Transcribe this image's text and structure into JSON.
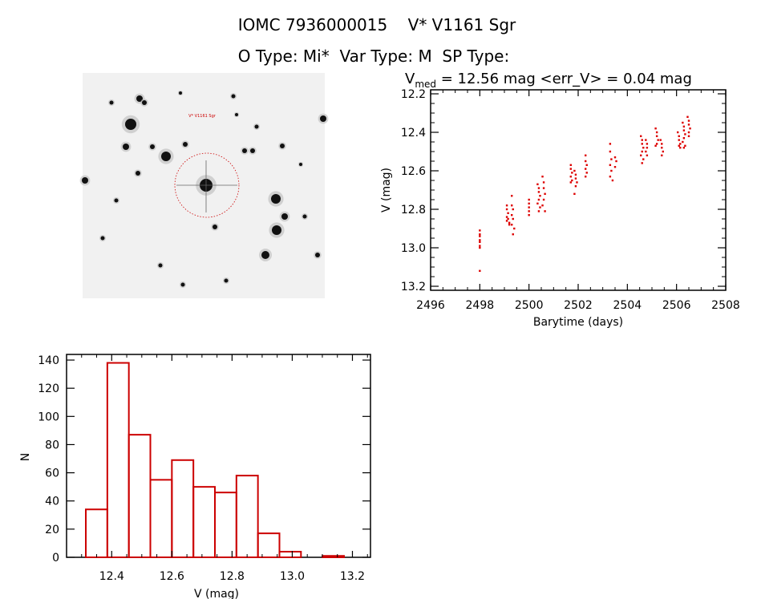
{
  "header": {
    "title": "IOMC 7936000015    V* V1161 Sgr",
    "subtitle": "O Type: Mi*  Var Type: M  SP Type:"
  },
  "image_panel": {
    "target_label": "V* V1161 Sgr",
    "target_marker_color": "#cc0000"
  },
  "chart_data": [
    {
      "type": "scatter",
      "title_main": "V",
      "title_sub": "med",
      "title_rest": " = 12.56 mag <err_V> = 0.04 mag",
      "xlabel": "Barytime (days)",
      "ylabel": "V (mag)",
      "xlim": [
        2496,
        2508
      ],
      "ylim": [
        13.2,
        12.2
      ],
      "y_inverted": true,
      "xticks": [
        "2496",
        "2498",
        "2500",
        "2502",
        "2504",
        "2506",
        "2508"
      ],
      "yticks": [
        "12.2",
        "12.4",
        "12.6",
        "12.8",
        "13.0",
        "13.2"
      ],
      "color": "#dd0000",
      "x": [
        2498.0,
        2498.0,
        2498.0,
        2498.0,
        2498.0,
        2498.0,
        2498.0,
        2498.0,
        2499.1,
        2499.1,
        2499.15,
        2499.1,
        2499.15,
        2499.1,
        2499.2,
        2499.2,
        2499.3,
        2499.3,
        2499.35,
        2499.3,
        2499.35,
        2499.3,
        2499.4,
        2499.35,
        2500.0,
        2500.0,
        2500.0,
        2500.0,
        2500.0,
        2500.35,
        2500.4,
        2500.4,
        2500.45,
        2500.4,
        2500.35,
        2500.45,
        2500.4,
        2500.55,
        2500.6,
        2500.6,
        2500.65,
        2500.6,
        2500.55,
        2500.65,
        2501.7,
        2501.7,
        2501.75,
        2501.7,
        2501.75,
        2501.7,
        2501.85,
        2501.9,
        2501.9,
        2501.95,
        2501.9,
        2501.85,
        2502.3,
        2502.3,
        2502.35,
        2502.3,
        2502.35,
        2502.3,
        2503.3,
        2503.3,
        2503.35,
        2503.3,
        2503.35,
        2503.3,
        2503.4,
        2503.5,
        2503.55,
        2503.5,
        2504.55,
        2504.6,
        2504.6,
        2504.65,
        2504.6,
        2504.55,
        2504.65,
        2504.6,
        2504.75,
        2504.8,
        2504.8,
        2504.75,
        2504.8,
        2505.15,
        2505.2,
        2505.2,
        2505.25,
        2505.2,
        2505.15,
        2505.35,
        2505.4,
        2505.4,
        2505.45,
        2505.4,
        2506.05,
        2506.1,
        2506.1,
        2506.15,
        2506.1,
        2506.15,
        2506.25,
        2506.3,
        2506.3,
        2506.35,
        2506.3,
        2506.25,
        2506.35,
        2506.3,
        2506.45,
        2506.5,
        2506.5,
        2506.55,
        2506.5,
        2506.5
      ],
      "y": [
        12.91,
        12.93,
        12.94,
        12.96,
        12.97,
        12.99,
        13.0,
        13.12,
        12.78,
        12.8,
        12.82,
        12.84,
        12.85,
        12.86,
        12.87,
        12.88,
        12.73,
        12.78,
        12.8,
        12.83,
        12.85,
        12.88,
        12.9,
        12.93,
        12.75,
        12.77,
        12.79,
        12.81,
        12.83,
        12.67,
        12.69,
        12.71,
        12.73,
        12.75,
        12.77,
        12.79,
        12.81,
        12.63,
        12.66,
        12.69,
        12.72,
        12.75,
        12.78,
        12.81,
        12.57,
        12.59,
        12.61,
        12.63,
        12.65,
        12.66,
        12.6,
        12.62,
        12.64,
        12.66,
        12.68,
        12.72,
        12.52,
        12.55,
        12.57,
        12.59,
        12.61,
        12.63,
        12.46,
        12.5,
        12.54,
        12.57,
        12.6,
        12.63,
        12.65,
        12.53,
        12.55,
        12.58,
        12.42,
        12.44,
        12.46,
        12.48,
        12.5,
        12.52,
        12.54,
        12.56,
        12.44,
        12.46,
        12.48,
        12.5,
        12.52,
        12.38,
        12.4,
        12.42,
        12.44,
        12.46,
        12.47,
        12.44,
        12.46,
        12.48,
        12.5,
        12.52,
        12.4,
        12.42,
        12.44,
        12.46,
        12.47,
        12.48,
        12.35,
        12.37,
        12.39,
        12.41,
        12.43,
        12.45,
        12.47,
        12.48,
        12.32,
        12.34,
        12.36,
        12.38,
        12.4,
        12.42
      ]
    },
    {
      "type": "bar",
      "histogram": true,
      "xlabel": "V (mag)",
      "ylabel": "N",
      "xlim": [
        12.25,
        13.26
      ],
      "ylim": [
        0,
        144
      ],
      "xticks": [
        "12.4",
        "12.6",
        "12.8",
        "13.0",
        "13.2"
      ],
      "yticks": [
        "0",
        "20",
        "40",
        "60",
        "80",
        "100",
        "120",
        "140"
      ],
      "bin_start": 12.314,
      "bin_width": 0.0715,
      "values": [
        34,
        138,
        87,
        55,
        69,
        50,
        46,
        58,
        17,
        4,
        0,
        1
      ],
      "color": "#cc0000"
    }
  ]
}
